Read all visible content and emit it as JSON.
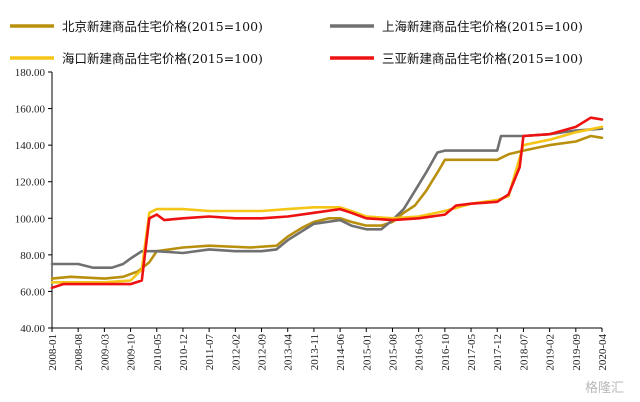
{
  "watermark": "格隆汇",
  "chart_data": {
    "type": "line",
    "ylim": [
      40,
      180
    ],
    "yticks": [
      "40.00",
      "60.00",
      "80.00",
      "100.00",
      "120.00",
      "140.00",
      "160.00",
      "180.00"
    ],
    "xlabels": [
      "2008-01",
      "2008-08",
      "2009-03",
      "2009-10",
      "2010-05",
      "2010-12",
      "2011-07",
      "2012-02",
      "2012-09",
      "2013-04",
      "2013-11",
      "2014-06",
      "2015-01",
      "2015-08",
      "2016-03",
      "2016-10",
      "2017-05",
      "2017-12",
      "2018-07",
      "2019-02",
      "2019-09",
      "2020-04"
    ],
    "x_range": [
      "2008-01",
      "2020-04"
    ],
    "grid": false,
    "legend_position": "top",
    "series": [
      {
        "name": "北京新建商品住宅价格(2015=100)",
        "color": "#b8900e",
        "points": [
          [
            "2008-01",
            67
          ],
          [
            "2008-06",
            68
          ],
          [
            "2009-03",
            67
          ],
          [
            "2009-08",
            68
          ],
          [
            "2009-12",
            71
          ],
          [
            "2010-03",
            76
          ],
          [
            "2010-05",
            82
          ],
          [
            "2010-12",
            84
          ],
          [
            "2011-07",
            85
          ],
          [
            "2012-06",
            84
          ],
          [
            "2013-01",
            85
          ],
          [
            "2013-04",
            90
          ],
          [
            "2013-08",
            95
          ],
          [
            "2013-11",
            98
          ],
          [
            "2014-03",
            100
          ],
          [
            "2014-06",
            100
          ],
          [
            "2014-09",
            98
          ],
          [
            "2015-01",
            96
          ],
          [
            "2015-05",
            96
          ],
          [
            "2015-08",
            98
          ],
          [
            "2015-11",
            103
          ],
          [
            "2016-02",
            107
          ],
          [
            "2016-05",
            115
          ],
          [
            "2016-08",
            125
          ],
          [
            "2016-10",
            132
          ],
          [
            "2017-05",
            132
          ],
          [
            "2017-12",
            132
          ],
          [
            "2018-03",
            135
          ],
          [
            "2018-07",
            137
          ],
          [
            "2019-02",
            140
          ],
          [
            "2019-09",
            142
          ],
          [
            "2020-01",
            145
          ],
          [
            "2020-04",
            144
          ]
        ]
      },
      {
        "name": "上海新建商品住宅价格(2015=100)",
        "color": "#707070",
        "points": [
          [
            "2008-01",
            75
          ],
          [
            "2008-08",
            75
          ],
          [
            "2008-12",
            73
          ],
          [
            "2009-05",
            73
          ],
          [
            "2009-08",
            75
          ],
          [
            "2009-10",
            78
          ],
          [
            "2010-01",
            82
          ],
          [
            "2010-05",
            82
          ],
          [
            "2010-12",
            81
          ],
          [
            "2011-07",
            83
          ],
          [
            "2012-02",
            82
          ],
          [
            "2012-09",
            82
          ],
          [
            "2013-01",
            83
          ],
          [
            "2013-04",
            88
          ],
          [
            "2013-11",
            97
          ],
          [
            "2014-06",
            99
          ],
          [
            "2014-09",
            96
          ],
          [
            "2015-01",
            94
          ],
          [
            "2015-05",
            94
          ],
          [
            "2015-08",
            99
          ],
          [
            "2015-11",
            105
          ],
          [
            "2016-02",
            115
          ],
          [
            "2016-05",
            125
          ],
          [
            "2016-08",
            136
          ],
          [
            "2016-10",
            137
          ],
          [
            "2017-05",
            137
          ],
          [
            "2017-12",
            137
          ],
          [
            "2018-01",
            145
          ],
          [
            "2018-07",
            145
          ],
          [
            "2019-02",
            146
          ],
          [
            "2019-09",
            148
          ],
          [
            "2020-04",
            149
          ]
        ]
      },
      {
        "name": "海口新建商品住宅价格(2015=100)",
        "color": "#f5c518",
        "points": [
          [
            "2008-01",
            65
          ],
          [
            "2008-08",
            65
          ],
          [
            "2009-03",
            65
          ],
          [
            "2009-10",
            66
          ],
          [
            "2010-01",
            72
          ],
          [
            "2010-03",
            103
          ],
          [
            "2010-05",
            105
          ],
          [
            "2010-12",
            105
          ],
          [
            "2011-07",
            104
          ],
          [
            "2012-02",
            104
          ],
          [
            "2012-09",
            104
          ],
          [
            "2013-04",
            105
          ],
          [
            "2013-11",
            106
          ],
          [
            "2014-06",
            106
          ],
          [
            "2014-09",
            104
          ],
          [
            "2015-01",
            101
          ],
          [
            "2015-08",
            100
          ],
          [
            "2016-03",
            101
          ],
          [
            "2016-10",
            104
          ],
          [
            "2017-05",
            108
          ],
          [
            "2017-12",
            110
          ],
          [
            "2018-03",
            112
          ],
          [
            "2018-07",
            140
          ],
          [
            "2019-02",
            143
          ],
          [
            "2019-09",
            147
          ],
          [
            "2020-04",
            150
          ]
        ]
      },
      {
        "name": "三亚新建商品住宅价格(2015=100)",
        "color": "#ee1111",
        "points": [
          [
            "2008-01",
            62
          ],
          [
            "2008-04",
            64
          ],
          [
            "2008-08",
            64
          ],
          [
            "2009-03",
            64
          ],
          [
            "2009-10",
            64
          ],
          [
            "2010-01",
            66
          ],
          [
            "2010-03",
            100
          ],
          [
            "2010-05",
            102
          ],
          [
            "2010-07",
            99
          ],
          [
            "2010-12",
            100
          ],
          [
            "2011-07",
            101
          ],
          [
            "2012-02",
            100
          ],
          [
            "2012-09",
            100
          ],
          [
            "2013-04",
            101
          ],
          [
            "2013-11",
            103
          ],
          [
            "2014-06",
            105
          ],
          [
            "2014-09",
            103
          ],
          [
            "2015-01",
            100
          ],
          [
            "2015-08",
            99
          ],
          [
            "2016-03",
            100
          ],
          [
            "2016-10",
            102
          ],
          [
            "2017-01",
            107
          ],
          [
            "2017-05",
            108
          ],
          [
            "2017-12",
            109
          ],
          [
            "2018-03",
            113
          ],
          [
            "2018-06",
            128
          ],
          [
            "2018-07",
            145
          ],
          [
            "2019-02",
            146
          ],
          [
            "2019-09",
            150
          ],
          [
            "2020-01",
            155
          ],
          [
            "2020-04",
            154
          ]
        ]
      }
    ]
  }
}
